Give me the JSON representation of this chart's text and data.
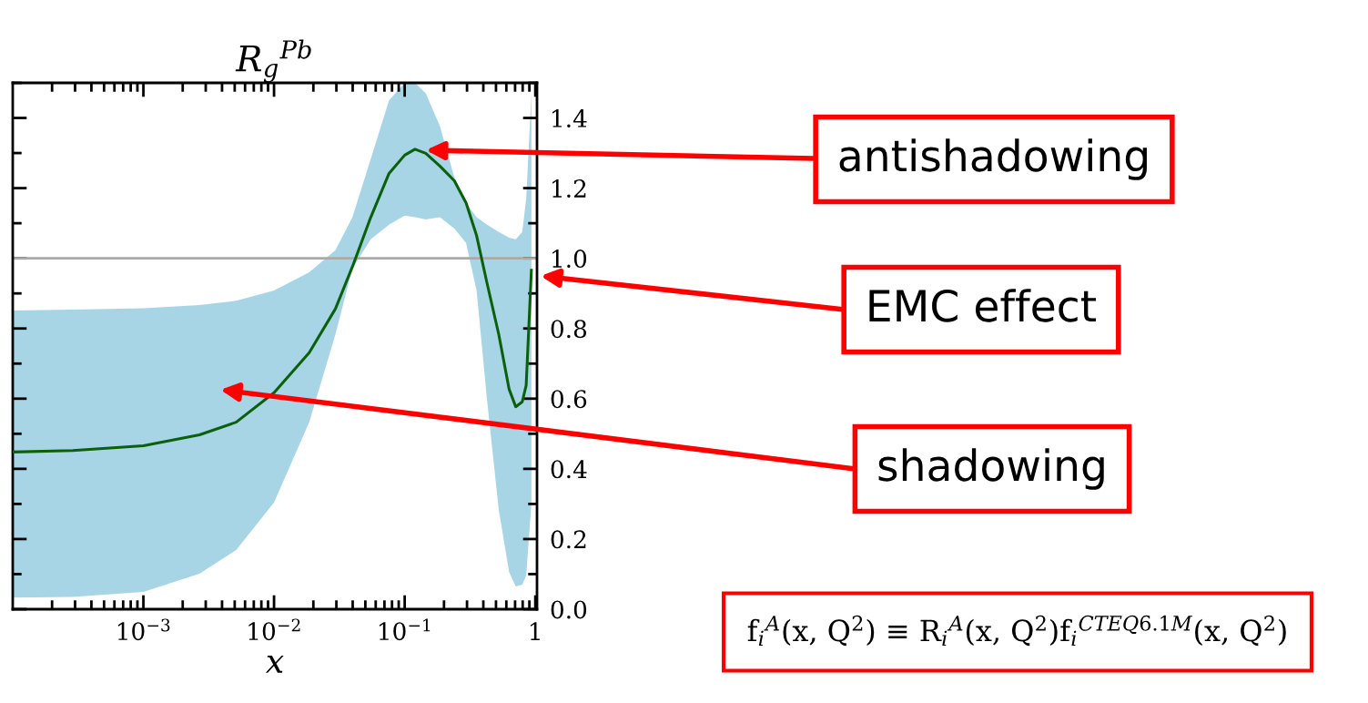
{
  "chart_data": {
    "type": "line",
    "title": "R$_{g}$$^{Pb}$",
    "xlabel": "x",
    "log": "x",
    "x": [
      0.0001,
      0.000288,
      0.001,
      0.00269,
      0.00513,
      0.01,
      0.0186,
      0.0295,
      0.0398,
      0.055,
      0.0759,
      0.1,
      0.12,
      0.145,
      0.186,
      0.24,
      0.295,
      0.355,
      0.427,
      0.525,
      0.63,
      0.708,
      0.794,
      0.851,
      0.933
    ],
    "series": [
      {
        "color": "#0b600b",
        "values": [
          0.448,
          0.452,
          0.466,
          0.497,
          0.533,
          0.617,
          0.731,
          0.856,
          0.976,
          1.117,
          1.242,
          1.294,
          1.311,
          1.299,
          1.263,
          1.221,
          1.158,
          1.065,
          0.929,
          0.783,
          0.627,
          0.577,
          0.591,
          0.638,
          0.966
        ],
        "lower": [
          0.033,
          0.035,
          0.049,
          0.101,
          0.169,
          0.304,
          0.533,
          0.783,
          0.971,
          1.054,
          1.096,
          1.122,
          1.117,
          1.111,
          1.117,
          1.085,
          1.044,
          0.908,
          0.596,
          0.283,
          0.106,
          0.065,
          0.07,
          0.096,
          0.3
        ],
        "upper": [
          0.851,
          0.854,
          0.858,
          0.867,
          0.879,
          0.908,
          0.96,
          1.023,
          1.117,
          1.283,
          1.45,
          1.5,
          1.5,
          1.47,
          1.377,
          1.231,
          1.158,
          1.117,
          1.096,
          1.075,
          1.059,
          1.054,
          1.075,
          1.169,
          1.47
        ]
      }
    ],
    "xlim": [
      0.0001,
      1.03
    ],
    "xticks": [
      {
        "value": 0.001,
        "label": "10$^{−3}$"
      },
      {
        "value": 0.01,
        "label": "10$^{−2}$"
      },
      {
        "value": 0.1,
        "label": "10$^{−1}$"
      },
      1
    ],
    "ylim": [
      0,
      1.5
    ],
    "yticks": [
      {
        "value": 0,
        "label": "0.0"
      },
      0.2,
      0.4,
      0.6,
      0.8,
      {
        "value": 1,
        "label": "1.0"
      },
      1.2,
      1.4
    ],
    "ref_lines": [
      {
        "axis": "y",
        "value": 1,
        "color": "#aaaaaa"
      }
    ],
    "annotations": [
      "antishadowing",
      "EMC effect",
      "shadowing",
      "f$_{i}$$^{A}$(x, Q$^{2}$) ≡ R$_{i}$$^{A}$(x, Q$^{2}$)f$_{i}$$^{CTEQ6.1M}$(x, Q$^{2}$)"
    ]
  }
}
